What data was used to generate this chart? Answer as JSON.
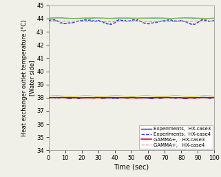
{
  "xlabel": "Time (sec)",
  "ylabel": "Heat exchanger outlet temperature (°C)\n[Water side]",
  "xlim": [
    0,
    100
  ],
  "ylim": [
    34,
    45
  ],
  "yticks": [
    34,
    35,
    36,
    37,
    38,
    39,
    40,
    41,
    42,
    43,
    44,
    45
  ],
  "xticks": [
    0,
    10,
    20,
    30,
    40,
    50,
    60,
    70,
    80,
    90,
    100
  ],
  "case3_exp_base": 38.0,
  "case4_exp_base": 43.85,
  "case3_gamma_base": 38.0,
  "case4_gamma_base": 43.78,
  "case3_exp_color": "#0000bb",
  "case4_exp_color": "#2222dd",
  "case3_gamma_color": "#cc0000",
  "case4_gamma_color": "#ff8888",
  "yellow_color": "#ddcc00",
  "legend_labels": [
    "Experiments,  HX-case3",
    "Experiments,  HX-case4",
    "GAMMA+,   HX-case3",
    "GAMMA+,   HX-case4"
  ],
  "bg_color": "#f0f0e8"
}
